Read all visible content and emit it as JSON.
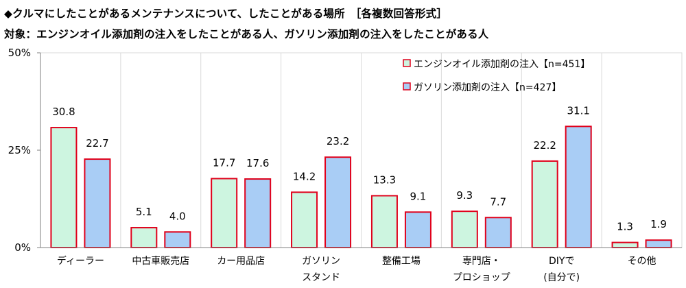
{
  "title": "◆クルマにしたことがあるメンテナンスについて、したことがある場所　［各複数回答形式］",
  "subtitle": "対象：エンジンオイル添加剤の注入をしたことがある人、ガソリン添加剤の注入をしたことがある人",
  "colors": {
    "series1_fill": "#cdf5e0",
    "series2_fill": "#a9cdf5",
    "bar_border": "#e0001b",
    "grid": "#d9d9d9",
    "axis": "#7f7f7f"
  },
  "chart_data": {
    "type": "bar",
    "title": "",
    "xlabel": "",
    "ylabel": "",
    "ylim": [
      0,
      50
    ],
    "yticks": [
      0,
      25,
      50
    ],
    "ytick_labels": [
      "0%",
      "25%",
      "50%"
    ],
    "grid": "vertical separators between categories",
    "legend_position": "top-right",
    "categories": [
      [
        "ディーラー"
      ],
      [
        "中古車販売店"
      ],
      [
        "カー用品店"
      ],
      [
        "ガソリン",
        "スタンド"
      ],
      [
        "整備工場"
      ],
      [
        "専門店・",
        "プロショップ"
      ],
      [
        "DIYで",
        "(自分で)"
      ],
      [
        "その他"
      ]
    ],
    "series": [
      {
        "name": "エンジンオイル添加剤の注入【n=451】",
        "values": [
          30.8,
          5.1,
          17.7,
          14.2,
          13.3,
          9.3,
          22.2,
          1.3
        ]
      },
      {
        "name": "ガソリン添加剤の注入【n=427】",
        "values": [
          22.7,
          4.0,
          17.6,
          23.2,
          9.1,
          7.7,
          31.1,
          1.9
        ]
      }
    ]
  }
}
